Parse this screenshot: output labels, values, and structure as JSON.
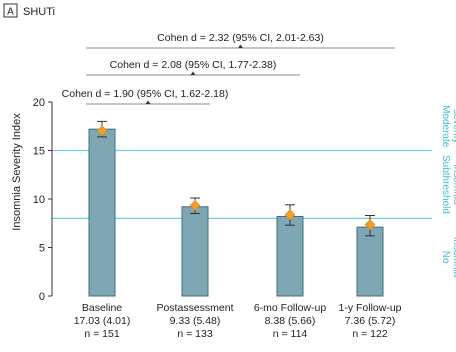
{
  "panel": {
    "letter": "A",
    "title": "SHUTi"
  },
  "colors": {
    "bar_fill": "#7fa6b3",
    "bar_stroke": "#3f6f80",
    "point": "#f0a02a",
    "threshold_line": "#6fd0de",
    "zone_label": "#3bbfd0",
    "axis": "#333333",
    "bracket": "#8a8a8a"
  },
  "chart_data": {
    "type": "bar",
    "ylabel": "Insomnia Severity Index",
    "ylim": [
      0,
      20
    ],
    "yticks": [
      0,
      5,
      10,
      15,
      20
    ],
    "grid": false,
    "categories": [
      "Baseline",
      "Postassessment",
      "6-mo Follow-up",
      "1-y Follow-up"
    ],
    "category_details": [
      {
        "stat": "17.03 (4.01)",
        "n": "n = 151"
      },
      {
        "stat": "9.33 (5.48)",
        "n": "n = 133"
      },
      {
        "stat": "8.38 (5.66)",
        "n": "n = 114"
      },
      {
        "stat": "7.36 (5.72)",
        "n": "n = 122"
      }
    ],
    "values": [
      17.2,
      9.2,
      8.2,
      7.1
    ],
    "error_bars": [
      {
        "low": 16.4,
        "high": 18.0
      },
      {
        "low": 8.5,
        "high": 10.1
      },
      {
        "low": 7.3,
        "high": 9.4
      },
      {
        "low": 6.2,
        "high": 8.3
      }
    ],
    "point_values": [
      17.03,
      9.33,
      8.38,
      7.36
    ],
    "reference_lines": [
      15,
      8
    ],
    "zones": [
      {
        "line1": "Moderate",
        "line2": "severity",
        "from": 15,
        "to": 20
      },
      {
        "line1": "Subthreshold",
        "line2": "insomnia",
        "from": 8,
        "to": 15
      },
      {
        "line1": "No",
        "line2": "insomnia",
        "from": 0,
        "to": 8
      }
    ],
    "comparisons": [
      {
        "label": "Cohen d = 2.32 (95% CI, 2.01-2.63)",
        "from_category": 0,
        "to_category": 3
      },
      {
        "label": "Cohen d = 2.08 (95% CI, 1.77-2.38)",
        "from_category": 0,
        "to_category": 2
      },
      {
        "label": "Cohen d = 1.90 (95% CI, 1.62-2.18)",
        "from_category": 0,
        "to_category": 1
      }
    ]
  }
}
